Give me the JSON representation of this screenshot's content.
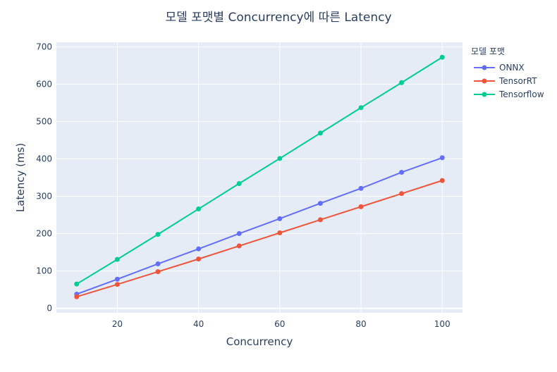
{
  "chart_data": {
    "type": "line",
    "title": "모델 포맷별 Concurrency에 따른 Latency",
    "xlabel": "Concurrency",
    "ylabel": "Latency (ms)",
    "x": [
      10,
      20,
      30,
      40,
      50,
      60,
      70,
      80,
      90,
      100
    ],
    "x_ticks": [
      20,
      40,
      60,
      80,
      100
    ],
    "y_ticks": [
      0,
      100,
      200,
      300,
      400,
      500,
      600,
      700
    ],
    "xlim": [
      5,
      105
    ],
    "ylim": [
      -12,
      712
    ],
    "grid": true,
    "legend_title": "모델 포맷",
    "legend_position": "right",
    "series": [
      {
        "name": "ONNX",
        "color": "#636efa",
        "values": [
          38,
          78,
          119,
          159,
          200,
          240,
          281,
          321,
          364,
          403
        ]
      },
      {
        "name": "TensorRT",
        "color": "#ef553b",
        "values": [
          31,
          64,
          98,
          132,
          167,
          202,
          237,
          272,
          307,
          342
        ]
      },
      {
        "name": "Tensorflow",
        "color": "#00cc96",
        "values": [
          65,
          131,
          198,
          266,
          334,
          401,
          469,
          537,
          604,
          672
        ]
      }
    ]
  }
}
